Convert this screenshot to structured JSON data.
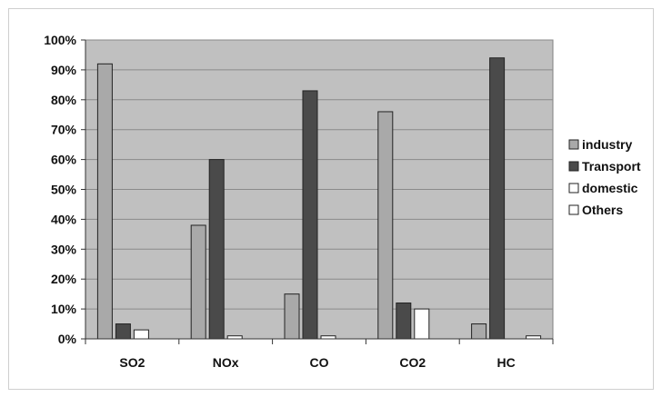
{
  "chart_data": {
    "type": "bar",
    "title": "",
    "xlabel": "",
    "ylabel": "",
    "categories": [
      "SO2",
      "NOx",
      "CO",
      "CO2",
      "HC"
    ],
    "series": [
      {
        "name": "industry",
        "values": [
          92,
          38,
          15,
          76,
          5
        ],
        "color": "#a9a9a9"
      },
      {
        "name": "Transport",
        "values": [
          5,
          60,
          83,
          12,
          94
        ],
        "color": "#4a4a4a"
      },
      {
        "name": "domestic",
        "values": [
          3,
          1,
          1,
          10,
          0
        ],
        "color": "#ffffff"
      },
      {
        "name": "Others",
        "values": [
          0,
          0,
          0,
          0,
          1
        ],
        "color": "#ffffff"
      }
    ],
    "ylim": [
      0,
      100
    ],
    "yticks": [
      "0%",
      "10%",
      "20%",
      "30%",
      "40%",
      "50%",
      "60%",
      "70%",
      "80%",
      "90%",
      "100%"
    ],
    "grid": true,
    "legend_position": "right",
    "plot_background": "#c0c0c0"
  }
}
